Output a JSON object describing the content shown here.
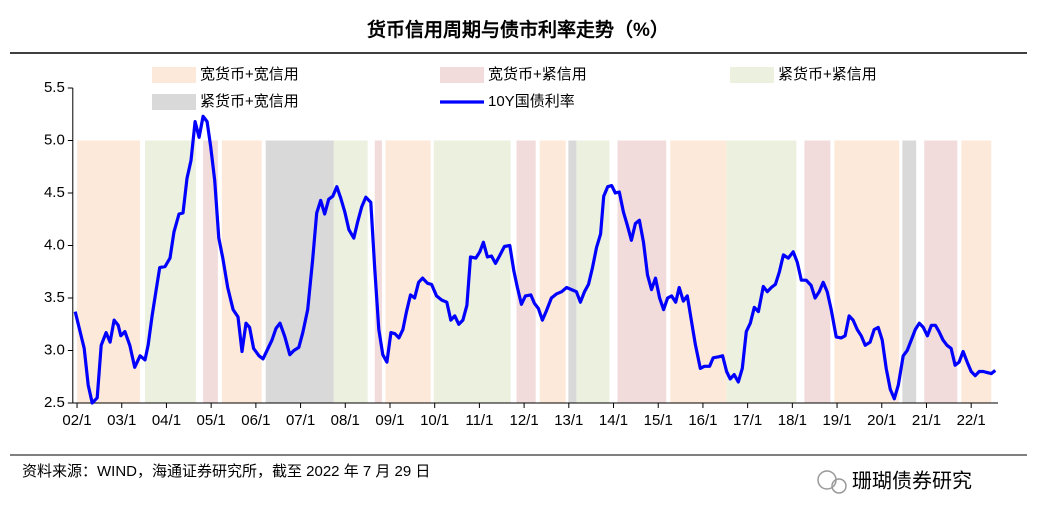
{
  "chart_data": {
    "type": "line",
    "title": "货币信用周期与债市利率走势（%）",
    "source": "资料来源：WIND，海通证券研究所，截至 2022 年 7 月 29 日",
    "watermark": "珊瑚债券研究",
    "xlim": [
      2001.95,
      2022.6
    ],
    "xticks": [
      {
        "value": 2002,
        "label": "02/1"
      },
      {
        "value": 2003,
        "label": "03/1"
      },
      {
        "value": 2004,
        "label": "04/1"
      },
      {
        "value": 2005,
        "label": "05/1"
      },
      {
        "value": 2006,
        "label": "06/1"
      },
      {
        "value": 2007,
        "label": "07/1"
      },
      {
        "value": 2008,
        "label": "08/1"
      },
      {
        "value": 2009,
        "label": "09/1"
      },
      {
        "value": 2010,
        "label": "10/1"
      },
      {
        "value": 2011,
        "label": "11/1"
      },
      {
        "value": 2012,
        "label": "12/1"
      },
      {
        "value": 2013,
        "label": "13/1"
      },
      {
        "value": 2014,
        "label": "14/1"
      },
      {
        "value": 2015,
        "label": "15/1"
      },
      {
        "value": 2016,
        "label": "16/1"
      },
      {
        "value": 2017,
        "label": "17/1"
      },
      {
        "value": 2018,
        "label": "18/1"
      },
      {
        "value": 2019,
        "label": "19/1"
      },
      {
        "value": 2020,
        "label": "20/1"
      },
      {
        "value": 2021,
        "label": "21/1"
      },
      {
        "value": 2022,
        "label": "22/1"
      }
    ],
    "ylim": [
      2.5,
      5.5
    ],
    "yticks": [
      2.5,
      {
        "value": 3,
        "label": "3.0"
      },
      3.5,
      {
        "value": 4,
        "label": "4.0"
      },
      4.5,
      {
        "value": 5,
        "label": "5.0"
      },
      5.5
    ],
    "grid": false,
    "band_range": [
      2.5,
      5.0
    ],
    "bands": [
      {
        "name": "宽货币+宽信用",
        "color": "#fde9d9",
        "periods": [
          [
            2002.0,
            2003.41
          ],
          [
            2005.24,
            2006.13
          ],
          [
            2008.9,
            2009.91
          ],
          [
            2012.35,
            2012.93
          ],
          [
            2015.27,
            2016.53
          ],
          [
            2018.94,
            2020.39
          ],
          [
            2021.78,
            2022.45
          ]
        ]
      },
      {
        "name": "宽货币+紧信用",
        "color": "#f2dcdb",
        "periods": [
          [
            2004.82,
            2005.15
          ],
          [
            2008.66,
            2008.82
          ],
          [
            2011.83,
            2012.26
          ],
          [
            2014.09,
            2015.18
          ],
          [
            2018.27,
            2018.85
          ],
          [
            2020.95,
            2021.69
          ]
        ]
      },
      {
        "name": "紧货币+紧信用",
        "color": "#ebf1de",
        "periods": [
          [
            2003.52,
            2004.66
          ],
          [
            2007.74,
            2008.5
          ],
          [
            2009.98,
            2011.7
          ],
          [
            2013.17,
            2013.91
          ],
          [
            2016.53,
            2018.09
          ]
        ]
      },
      {
        "name": "紧货币+宽信用",
        "color": "#d9d9d9",
        "periods": [
          [
            2006.22,
            2007.74
          ],
          [
            2012.99,
            2013.17
          ],
          [
            2020.46,
            2020.77
          ]
        ]
      }
    ],
    "series": [
      {
        "name": "10Y国债利率",
        "color": "#0000ff",
        "x": [
          2001.96,
          2002.16,
          2002.25,
          2002.34,
          2002.45,
          2002.54,
          2002.65,
          2002.74,
          2002.83,
          2002.92,
          2002.98,
          2003.07,
          2003.18,
          2003.29,
          2003.41,
          2003.52,
          2003.59,
          2003.68,
          2003.77,
          2003.85,
          2003.97,
          2004.08,
          2004.17,
          2004.28,
          2004.37,
          2004.46,
          2004.55,
          2004.64,
          2004.73,
          2004.82,
          2004.91,
          2004.99,
          2005.08,
          2005.17,
          2005.26,
          2005.37,
          2005.49,
          2005.6,
          2005.69,
          2005.78,
          2005.86,
          2005.95,
          2006.07,
          2006.16,
          2006.25,
          2006.36,
          2006.45,
          2006.54,
          2006.65,
          2006.76,
          2006.85,
          2006.96,
          2007.05,
          2007.16,
          2007.27,
          2007.36,
          2007.45,
          2007.54,
          2007.63,
          2007.72,
          2007.81,
          2007.9,
          2007.99,
          2008.08,
          2008.19,
          2008.28,
          2008.37,
          2008.46,
          2008.57,
          2008.66,
          2008.75,
          2008.84,
          2008.93,
          2009.02,
          2009.11,
          2009.2,
          2009.29,
          2009.37,
          2009.46,
          2009.55,
          2009.64,
          2009.73,
          2009.84,
          2009.93,
          2010.04,
          2010.16,
          2010.27,
          2010.36,
          2010.45,
          2010.54,
          2010.63,
          2010.72,
          2010.8,
          2010.92,
          2011.01,
          2011.09,
          2011.18,
          2011.27,
          2011.36,
          2011.45,
          2011.56,
          2011.68,
          2011.77,
          2011.85,
          2011.94,
          2012.03,
          2012.15,
          2012.23,
          2012.32,
          2012.41,
          2012.5,
          2012.61,
          2012.73,
          2012.84,
          2012.95,
          2013.06,
          2013.17,
          2013.26,
          2013.35,
          2013.44,
          2013.53,
          2013.62,
          2013.71,
          2013.78,
          2013.87,
          2013.96,
          2014.04,
          2014.13,
          2014.22,
          2014.31,
          2014.4,
          2014.49,
          2014.58,
          2014.67,
          2014.76,
          2014.85,
          2014.94,
          2015.03,
          2015.12,
          2015.21,
          2015.3,
          2015.39,
          2015.47,
          2015.56,
          2015.65,
          2015.74,
          2015.83,
          2015.94,
          2016.03,
          2016.15,
          2016.23,
          2016.35,
          2016.44,
          2016.53,
          2016.61,
          2016.7,
          2016.79,
          2016.88,
          2016.97,
          2017.06,
          2017.15,
          2017.24,
          2017.35,
          2017.44,
          2017.53,
          2017.62,
          2017.71,
          2017.8,
          2017.91,
          2018.02,
          2018.11,
          2018.2,
          2018.31,
          2018.42,
          2018.51,
          2018.6,
          2018.69,
          2018.78,
          2018.87,
          2018.98,
          2019.09,
          2019.18,
          2019.27,
          2019.36,
          2019.45,
          2019.54,
          2019.63,
          2019.74,
          2019.83,
          2019.92,
          2020.01,
          2020.1,
          2020.19,
          2020.28,
          2020.37,
          2020.48,
          2020.57,
          2020.66,
          2020.75,
          2020.84,
          2020.93,
          2021.02,
          2021.11,
          2021.2,
          2021.28,
          2021.37,
          2021.46,
          2021.55,
          2021.64,
          2021.73,
          2021.82,
          2021.91,
          2022.0,
          2022.09,
          2022.18,
          2022.27,
          2022.36,
          2022.45,
          2022.54
        ],
        "values": [
          3.37,
          3.02,
          2.67,
          2.5,
          2.55,
          3.05,
          3.17,
          3.08,
          3.29,
          3.24,
          3.14,
          3.18,
          3.05,
          2.84,
          2.95,
          2.91,
          3.05,
          3.33,
          3.58,
          3.79,
          3.8,
          3.88,
          4.13,
          4.3,
          4.31,
          4.64,
          4.81,
          5.18,
          5.03,
          5.23,
          5.18,
          4.94,
          4.62,
          4.07,
          3.88,
          3.6,
          3.39,
          3.32,
          2.99,
          3.26,
          3.22,
          3.02,
          2.95,
          2.92,
          3.0,
          3.1,
          3.21,
          3.26,
          3.13,
          2.96,
          3.0,
          3.03,
          3.17,
          3.39,
          3.86,
          4.31,
          4.43,
          4.3,
          4.44,
          4.47,
          4.56,
          4.45,
          4.32,
          4.15,
          4.07,
          4.23,
          4.37,
          4.46,
          4.41,
          3.77,
          3.2,
          2.96,
          2.89,
          3.17,
          3.16,
          3.12,
          3.2,
          3.37,
          3.53,
          3.5,
          3.65,
          3.69,
          3.64,
          3.63,
          3.52,
          3.48,
          3.46,
          3.29,
          3.33,
          3.25,
          3.29,
          3.43,
          3.89,
          3.88,
          3.94,
          4.03,
          3.89,
          3.9,
          3.83,
          3.9,
          3.99,
          4.0,
          3.76,
          3.6,
          3.44,
          3.52,
          3.53,
          3.45,
          3.4,
          3.29,
          3.38,
          3.5,
          3.54,
          3.56,
          3.6,
          3.58,
          3.56,
          3.46,
          3.56,
          3.63,
          3.79,
          3.98,
          4.11,
          4.47,
          4.56,
          4.57,
          4.5,
          4.51,
          4.32,
          4.19,
          4.05,
          4.21,
          4.24,
          4.03,
          3.72,
          3.58,
          3.69,
          3.5,
          3.39,
          3.5,
          3.52,
          3.46,
          3.6,
          3.47,
          3.52,
          3.29,
          3.06,
          2.83,
          2.85,
          2.85,
          2.93,
          2.94,
          2.95,
          2.8,
          2.73,
          2.77,
          2.7,
          2.83,
          3.18,
          3.26,
          3.41,
          3.37,
          3.61,
          3.56,
          3.6,
          3.63,
          3.75,
          3.91,
          3.88,
          3.94,
          3.84,
          3.67,
          3.67,
          3.62,
          3.5,
          3.56,
          3.65,
          3.56,
          3.39,
          3.13,
          3.12,
          3.14,
          3.33,
          3.29,
          3.2,
          3.14,
          3.05,
          3.08,
          3.2,
          3.22,
          3.1,
          2.83,
          2.63,
          2.54,
          2.67,
          2.95,
          3.0,
          3.1,
          3.2,
          3.26,
          3.22,
          3.14,
          3.24,
          3.24,
          3.18,
          3.1,
          3.05,
          3.02,
          2.86,
          2.89,
          2.99,
          2.89,
          2.8,
          2.76,
          2.8,
          2.8,
          2.79,
          2.78,
          2.81
        ]
      }
    ]
  }
}
